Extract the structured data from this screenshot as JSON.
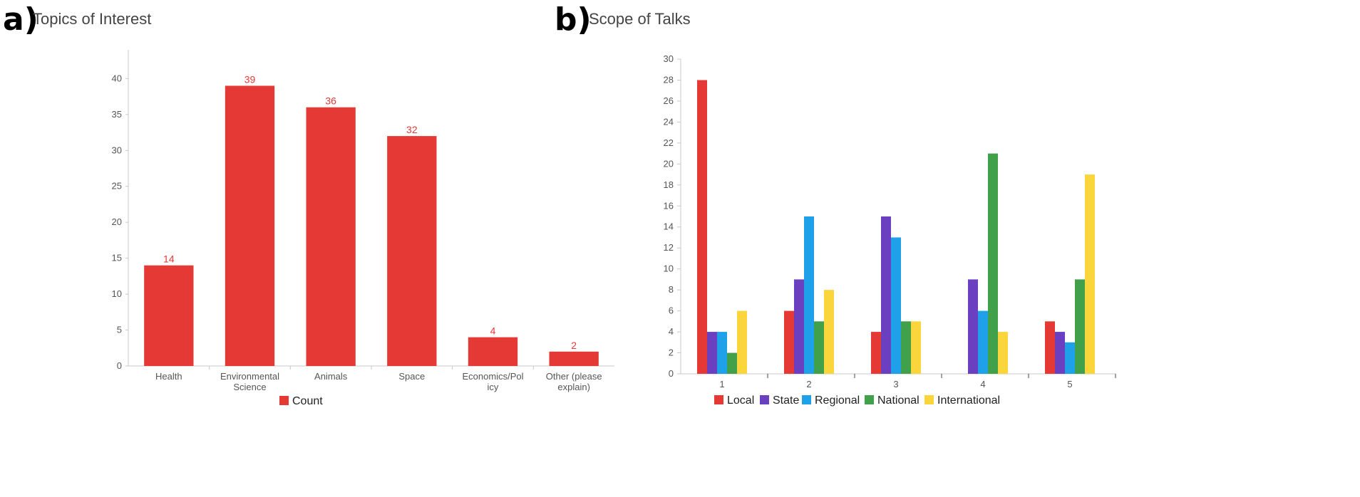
{
  "colors": {
    "local": "#e53935",
    "state": "#6a3fc0",
    "regional": "#1ea1e8",
    "national": "#41a04a",
    "international": "#fbd53c",
    "count": "#e53935",
    "axis": "#c8c8c8",
    "tick_text": "#555555"
  },
  "chart_data": [
    {
      "panel": "a)",
      "type": "bar",
      "title": "Topics of Interest",
      "categories": [
        "Health",
        "Environmental Science",
        "Animals",
        "Space",
        "Economics/Policy",
        "Other (please explain)"
      ],
      "category_lines": [
        [
          "Health"
        ],
        [
          "Environmental",
          "Science"
        ],
        [
          "Animals"
        ],
        [
          "Space"
        ],
        [
          "Economics/Pol",
          "icy"
        ],
        [
          "Other (please",
          "explain)"
        ]
      ],
      "series": [
        {
          "name": "Count",
          "values": [
            14,
            39,
            36,
            32,
            4,
            2
          ]
        }
      ],
      "ylim": [
        0,
        44
      ],
      "yticks": [
        0,
        5,
        10,
        15,
        20,
        25,
        30,
        35,
        40
      ],
      "data_labels": true,
      "legend": "bottom",
      "grid": false
    },
    {
      "panel": "b)",
      "type": "bar",
      "title": "Scope of Talks",
      "categories": [
        "1",
        "2",
        "3",
        "4",
        "5"
      ],
      "series": [
        {
          "name": "Local",
          "values": [
            28,
            6,
            4,
            0,
            5
          ]
        },
        {
          "name": "State",
          "values": [
            4,
            9,
            15,
            9,
            4
          ]
        },
        {
          "name": "Regional",
          "values": [
            4,
            15,
            13,
            6,
            3
          ]
        },
        {
          "name": "National",
          "values": [
            2,
            5,
            5,
            21,
            9
          ]
        },
        {
          "name": "International",
          "values": [
            6,
            8,
            5,
            4,
            19
          ]
        }
      ],
      "ylim": [
        0,
        30
      ],
      "yticks": [
        0,
        2,
        4,
        6,
        8,
        10,
        12,
        14,
        16,
        18,
        20,
        22,
        24,
        26,
        28,
        30
      ],
      "legend": "bottom",
      "grid": false
    }
  ]
}
